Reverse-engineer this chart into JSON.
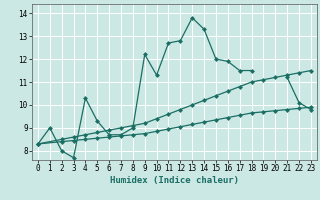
{
  "xlabel": "Humidex (Indice chaleur)",
  "bg_color": "#cce8e4",
  "grid_color": "#ffffff",
  "line_color": "#1a6e64",
  "xlim": [
    -0.5,
    23.5
  ],
  "ylim": [
    7.6,
    14.4
  ],
  "xticks": [
    0,
    1,
    2,
    3,
    4,
    5,
    6,
    7,
    8,
    9,
    10,
    11,
    12,
    13,
    14,
    15,
    16,
    17,
    18,
    19,
    20,
    21,
    22,
    23
  ],
  "yticks": [
    8,
    9,
    10,
    11,
    12,
    13,
    14
  ],
  "line1_x": [
    0,
    1,
    2,
    3,
    4,
    5,
    6,
    7,
    8,
    9,
    10,
    11,
    12,
    13,
    14,
    15,
    16,
    17,
    18,
    19,
    20,
    21,
    22,
    23
  ],
  "line1_y": [
    8.3,
    9.0,
    8.0,
    7.7,
    10.3,
    9.3,
    8.7,
    8.7,
    9.0,
    12.2,
    11.3,
    12.7,
    12.8,
    13.8,
    13.3,
    12.0,
    11.9,
    11.5,
    11.5,
    null,
    null,
    11.2,
    10.1,
    9.8
  ],
  "line2_x": [
    0,
    2,
    3,
    4,
    5,
    6,
    7,
    8,
    9,
    10,
    11,
    12,
    13,
    14,
    15,
    16,
    17,
    18,
    19,
    20,
    21,
    22,
    23
  ],
  "line2_y": [
    8.3,
    8.5,
    8.6,
    8.7,
    8.8,
    8.9,
    9.0,
    9.1,
    9.2,
    9.4,
    9.6,
    9.8,
    10.0,
    10.2,
    10.4,
    10.6,
    10.8,
    11.0,
    11.1,
    11.2,
    11.3,
    11.4,
    11.5
  ],
  "line3_x": [
    0,
    2,
    3,
    4,
    5,
    6,
    7,
    8,
    9,
    10,
    11,
    12,
    13,
    14,
    15,
    16,
    17,
    18,
    19,
    20,
    21,
    22,
    23
  ],
  "line3_y": [
    8.3,
    8.4,
    8.45,
    8.5,
    8.55,
    8.6,
    8.65,
    8.7,
    8.75,
    8.85,
    8.95,
    9.05,
    9.15,
    9.25,
    9.35,
    9.45,
    9.55,
    9.65,
    9.7,
    9.75,
    9.8,
    9.85,
    9.9
  ]
}
